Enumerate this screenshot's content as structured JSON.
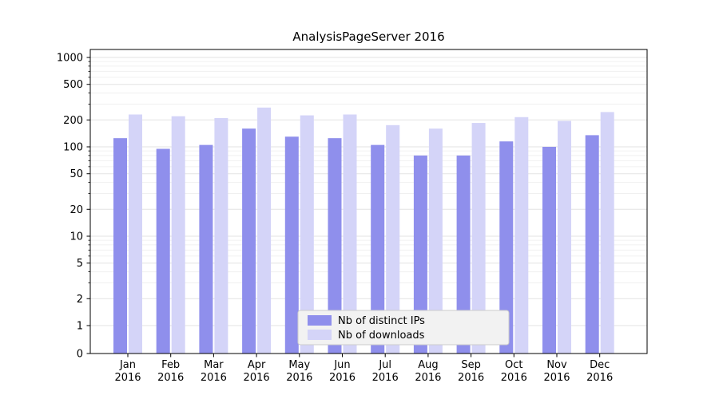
{
  "chart_data": {
    "type": "bar",
    "title": "AnalysisPageServer 2016",
    "categories": [
      "Jan 2016",
      "Feb 2016",
      "Mar 2016",
      "Apr 2016",
      "May 2016",
      "Jun 2016",
      "Jul 2016",
      "Aug 2016",
      "Sep 2016",
      "Oct 2016",
      "Nov 2016",
      "Dec 2016"
    ],
    "series": [
      {
        "name": "Nb of distinct IPs",
        "color": "#8f8fec",
        "values": [
          125,
          95,
          105,
          160,
          130,
          125,
          105,
          80,
          80,
          115,
          100,
          135
        ]
      },
      {
        "name": "Nb of downloads",
        "color": "#d4d4f8",
        "values": [
          230,
          220,
          210,
          275,
          225,
          230,
          175,
          160,
          185,
          215,
          195,
          245
        ]
      }
    ],
    "y_axis": {
      "scale": "symlog",
      "ticks": [
        0,
        1,
        2,
        5,
        10,
        20,
        50,
        100,
        200,
        500,
        1000
      ],
      "lim": [
        0,
        1000
      ]
    },
    "x_axis": {
      "label": ""
    },
    "grid": true,
    "legend": {
      "position": "lower center",
      "entries": [
        "Nb of distinct IPs",
        "Nb of downloads"
      ]
    }
  },
  "colors": {
    "background": "#ffffff",
    "axis": "#000000",
    "text": "#000000",
    "grid_major": "#e3e3e3",
    "grid_minor": "#f0f0f0",
    "legend_bg": "#f2f2f2",
    "legend_border": "#cccccc"
  }
}
